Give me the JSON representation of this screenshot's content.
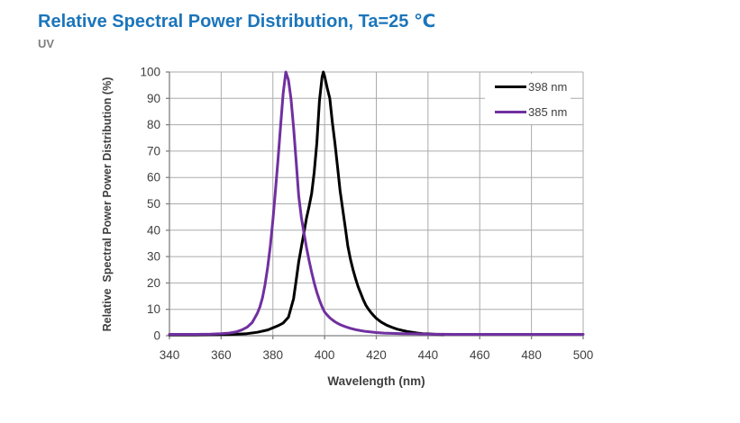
{
  "header": {
    "title": "Relative Spectral Power Distribution, Ta=25 ℃",
    "subtitle": "UV"
  },
  "colors": {
    "title_blue": "#1B75BB",
    "subtitle_gray": "#7F7F7F",
    "grid": "#ABABAB",
    "axis": "#808080",
    "tick_label": "#3F3F3F",
    "series_398": "#000000",
    "series_385": "#7030A0"
  },
  "chart_data": {
    "type": "line",
    "title": "Relative Spectral Power Distribution, Ta=25 ℃",
    "subtitle": "UV",
    "xlabel": "Wavelength (nm)",
    "ylabel": "Relative  Spectral Power Power Distribution (%)",
    "xlim": [
      340,
      500
    ],
    "ylim": [
      0,
      100
    ],
    "x_ticks": [
      340,
      360,
      380,
      400,
      420,
      440,
      460,
      480,
      500
    ],
    "y_ticks": [
      0,
      10,
      20,
      30,
      40,
      50,
      60,
      70,
      80,
      90,
      100
    ],
    "grid": true,
    "legend_position": "top-right-inside",
    "legend_entries": [
      "398 nm",
      "385 nm"
    ],
    "series": [
      {
        "name": "398 nm",
        "color": "#000000",
        "peak_nm": 399,
        "points": [
          [
            340,
            0.3
          ],
          [
            350,
            0.3
          ],
          [
            360,
            0.4
          ],
          [
            365,
            0.5
          ],
          [
            370,
            0.8
          ],
          [
            374,
            1.3
          ],
          [
            378,
            2.2
          ],
          [
            380,
            3
          ],
          [
            382,
            3.8
          ],
          [
            384,
            4.8
          ],
          [
            386,
            7
          ],
          [
            388,
            14
          ],
          [
            389,
            21
          ],
          [
            390,
            28
          ],
          [
            391,
            33.5
          ],
          [
            392,
            39
          ],
          [
            393,
            44.5
          ],
          [
            394,
            49
          ],
          [
            395,
            54
          ],
          [
            396,
            62
          ],
          [
            397,
            73
          ],
          [
            398,
            89
          ],
          [
            399,
            98
          ],
          [
            399.5,
            100
          ],
          [
            400,
            98.5
          ],
          [
            401,
            94
          ],
          [
            402,
            90
          ],
          [
            403,
            81
          ],
          [
            404,
            73
          ],
          [
            405,
            64
          ],
          [
            406,
            55
          ],
          [
            407,
            48
          ],
          [
            408,
            41
          ],
          [
            409,
            34
          ],
          [
            410,
            29
          ],
          [
            411,
            25
          ],
          [
            412,
            21.5
          ],
          [
            413,
            18.5
          ],
          [
            414,
            16
          ],
          [
            415,
            13.5
          ],
          [
            416,
            11.5
          ],
          [
            417,
            10
          ],
          [
            418,
            8.7
          ],
          [
            419,
            7.6
          ],
          [
            420,
            6.6
          ],
          [
            421,
            5.8
          ],
          [
            422,
            5.1
          ],
          [
            424,
            4
          ],
          [
            426,
            3.2
          ],
          [
            428,
            2.5
          ],
          [
            430,
            2
          ],
          [
            432,
            1.6
          ],
          [
            434,
            1.3
          ],
          [
            436,
            1
          ],
          [
            438,
            0.8
          ],
          [
            440,
            0.7
          ],
          [
            443,
            0.5
          ],
          [
            446,
            0.4
          ]
        ]
      },
      {
        "name": "385 nm",
        "color": "#7030A0",
        "peak_nm": 385,
        "points": [
          [
            340,
            0.5
          ],
          [
            350,
            0.5
          ],
          [
            356,
            0.6
          ],
          [
            360,
            0.8
          ],
          [
            363,
            1
          ],
          [
            366,
            1.5
          ],
          [
            368,
            2.2
          ],
          [
            370,
            3.2
          ],
          [
            372,
            5
          ],
          [
            374,
            8.5
          ],
          [
            375,
            11
          ],
          [
            376,
            14.5
          ],
          [
            377,
            19.5
          ],
          [
            378,
            26
          ],
          [
            379,
            34
          ],
          [
            380,
            44
          ],
          [
            381,
            55
          ],
          [
            382,
            67
          ],
          [
            383,
            80
          ],
          [
            384,
            92
          ],
          [
            385,
            100
          ],
          [
            386,
            97
          ],
          [
            387,
            90
          ],
          [
            388,
            79
          ],
          [
            389,
            66
          ],
          [
            390,
            53
          ],
          [
            391,
            45
          ],
          [
            392,
            39
          ],
          [
            393,
            33.5
          ],
          [
            394,
            28.5
          ],
          [
            395,
            24
          ],
          [
            396,
            20
          ],
          [
            397,
            16.5
          ],
          [
            398,
            13.5
          ],
          [
            399,
            11
          ],
          [
            400,
            9
          ],
          [
            401,
            7.8
          ],
          [
            402,
            6.8
          ],
          [
            403,
            6
          ],
          [
            404,
            5.3
          ],
          [
            405,
            4.7
          ],
          [
            406,
            4.2
          ],
          [
            408,
            3.4
          ],
          [
            410,
            2.8
          ],
          [
            412,
            2.3
          ],
          [
            414,
            1.9
          ],
          [
            416,
            1.6
          ],
          [
            418,
            1.4
          ],
          [
            420,
            1.2
          ],
          [
            423,
            1
          ],
          [
            426,
            0.9
          ],
          [
            430,
            0.8
          ],
          [
            435,
            0.7
          ],
          [
            440,
            0.6
          ],
          [
            450,
            0.5
          ],
          [
            460,
            0.5
          ],
          [
            470,
            0.5
          ],
          [
            480,
            0.5
          ],
          [
            490,
            0.5
          ],
          [
            500,
            0.5
          ]
        ]
      }
    ]
  }
}
